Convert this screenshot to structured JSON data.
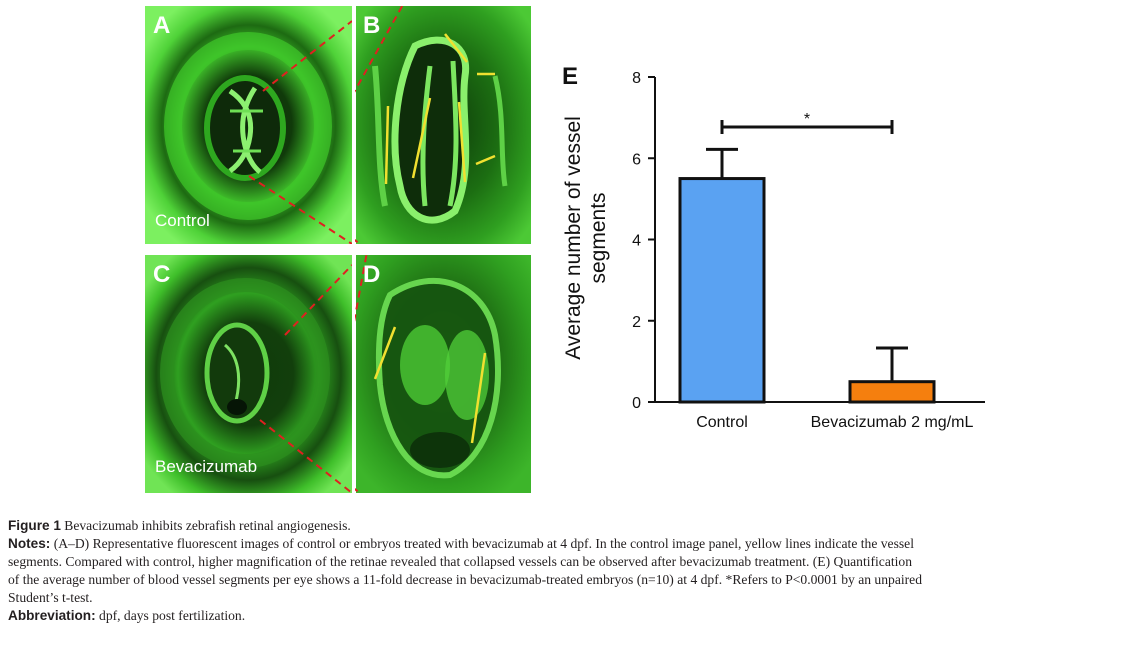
{
  "panels": {
    "A": {
      "label": "A",
      "caption": "Control"
    },
    "B": {
      "label": "B"
    },
    "C": {
      "label": "C",
      "caption": "Bevacizumab"
    },
    "D": {
      "label": "D"
    }
  },
  "chart_data": {
    "type": "bar",
    "panel_label": "E",
    "categories": [
      "Control",
      "Bevacizumab 2 mg/mL"
    ],
    "values": [
      5.5,
      0.5
    ],
    "errors": [
      0.72,
      0.83
    ],
    "colors": [
      "#5aa2f2",
      "#f57f0e"
    ],
    "ylabel": "Average number of vessel segments",
    "ylabel_lines": [
      "Average number of vessel",
      "segments"
    ],
    "ylim": [
      0,
      8
    ],
    "yticks": [
      0,
      2,
      4,
      6,
      8
    ],
    "significance": "*"
  },
  "caption": {
    "figure_label": "Figure 1",
    "figure_title": "Bevacizumab inhibits zebrafish retinal angiogenesis.",
    "notes_label": "Notes:",
    "notes_line1": "(A–D) Representative fluorescent images of control or embryos treated with bevacizumab at 4 dpf. In the control image panel, yellow lines indicate the vessel",
    "notes_line2": "segments. Compared with control, higher magnification of the retinae revealed that collapsed vessels can be observed after bevacizumab treatment. (E) Quantification",
    "notes_line3": "of the average number of blood vessel segments per eye shows a 11-fold decrease in bevacizumab-treated embryos (n=10) at 4 dpf. *Refers to P<0.0001 by an unpaired",
    "notes_line4": "Student’s t-test.",
    "abbr_label": "Abbreviation:",
    "abbr_text": "dpf, days post fertilization."
  }
}
